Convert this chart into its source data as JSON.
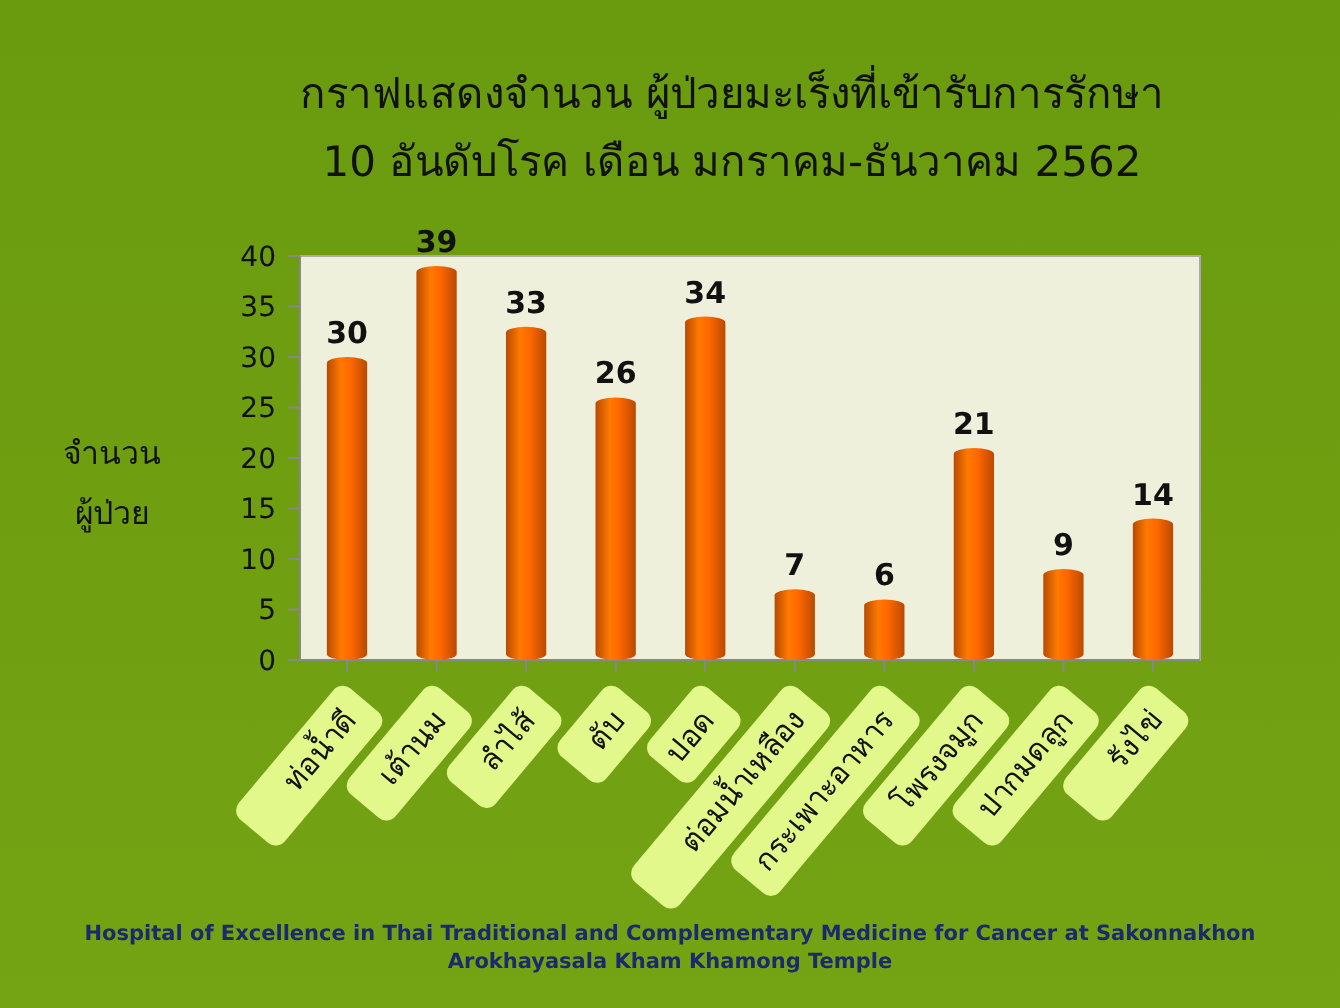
{
  "chart_data": {
    "type": "bar",
    "title": "กราฟแสดงจำนวน ผู้ป่วยมะเร็งที่เข้ารับการรักษา\n10 อันดับโรค เดือน มกราคม-ธันวาคม  2562",
    "ylabel": "จำนวน\nผู้ป่วย",
    "categories": [
      "ท่อน้ำดี",
      "เต้านม",
      "ลำไส้",
      "ตับ",
      "ปอด",
      "ต่อมน้ำเหลือง",
      "กระเพาะอาหาร",
      "โพรงจมูก",
      "ปากมดลูก",
      "รังไข่"
    ],
    "values": [
      30,
      39,
      33,
      26,
      34,
      7,
      6,
      21,
      9,
      14
    ],
    "color": "#ff6600",
    "ylim": [
      0,
      40
    ],
    "yticks": [
      0,
      5,
      10,
      15,
      20,
      25,
      30,
      35,
      40
    ],
    "data_labels": true,
    "annotations": [
      "Hospital of Excellence in Thai Traditional and Complementary Medicine for Cancer at Sakonnakhon\nArokhayasala Kham Khamong Temple"
    ]
  }
}
